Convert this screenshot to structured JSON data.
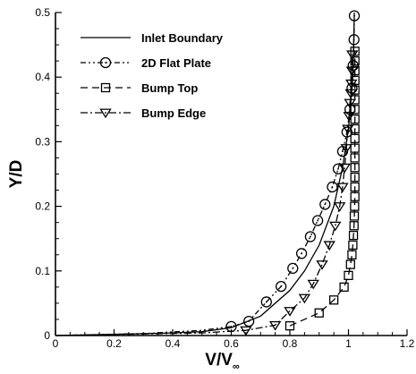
{
  "chart_data": {
    "type": "line",
    "title": "",
    "xlabel": "V/V",
    "xlabel_subscript": "∞",
    "ylabel": "Y/D",
    "xlim": [
      0,
      1.2
    ],
    "ylim": [
      0,
      0.5
    ],
    "xticks": [
      "0",
      "0.2",
      "0.4",
      "0.6",
      "0.8",
      "1",
      "1.2"
    ],
    "yticks": [
      "0",
      "0.1",
      "0.2",
      "0.3",
      "0.4",
      "0.5"
    ],
    "xtick_values": [
      0,
      0.2,
      0.4,
      0.6,
      0.8,
      1.0,
      1.2
    ],
    "ytick_values": [
      0,
      0.1,
      0.2,
      0.3,
      0.4,
      0.5
    ],
    "grid": false,
    "legend_position": "top-left",
    "series": [
      {
        "name": "Inlet Boundary",
        "line_style": "solid",
        "marker": "none",
        "x": [
          0.0,
          0.2,
          0.4,
          0.5,
          0.6,
          0.7,
          0.8,
          0.85,
          0.9,
          0.95,
          0.98,
          1.0,
          1.015,
          1.02
        ],
        "y": [
          0.0,
          0.002,
          0.004,
          0.006,
          0.012,
          0.03,
          0.07,
          0.1,
          0.14,
          0.2,
          0.26,
          0.32,
          0.4,
          0.5
        ]
      },
      {
        "name": "2D Flat Plate",
        "line_style": "dash-dot-dot",
        "marker": "circle",
        "x": [
          0.0,
          0.3,
          0.5,
          0.6,
          0.66,
          0.72,
          0.77,
          0.81,
          0.84,
          0.87,
          0.895,
          0.92,
          0.945,
          0.965,
          0.98,
          0.995,
          1.005,
          1.012,
          1.016,
          1.019,
          1.02
        ],
        "y": [
          0.0,
          0.003,
          0.008,
          0.014,
          0.022,
          0.052,
          0.076,
          0.104,
          0.127,
          0.153,
          0.178,
          0.203,
          0.23,
          0.258,
          0.285,
          0.315,
          0.35,
          0.383,
          0.418,
          0.458,
          0.495
        ]
      },
      {
        "name": "Bump Top",
        "line_style": "dashed",
        "marker": "square",
        "x": [
          0.8,
          0.9,
          0.95,
          0.985,
          1.0,
          1.007,
          1.012,
          1.015,
          1.017,
          1.019,
          1.02,
          1.021,
          1.022,
          1.022,
          1.022,
          1.022,
          1.022,
          1.022,
          1.022,
          1.022,
          1.022,
          1.022,
          1.022,
          1.022,
          1.022,
          1.022,
          1.022,
          1.022
        ],
        "y": [
          0.015,
          0.035,
          0.055,
          0.075,
          0.093,
          0.11,
          0.125,
          0.14,
          0.155,
          0.17,
          0.185,
          0.2,
          0.215,
          0.23,
          0.245,
          0.26,
          0.275,
          0.29,
          0.305,
          0.32,
          0.335,
          0.35,
          0.365,
          0.38,
          0.395,
          0.41,
          0.425,
          0.44
        ]
      },
      {
        "name": "Bump Edge",
        "line_style": "dash-dot",
        "marker": "triangle-down",
        "x": [
          0.0,
          0.5,
          0.65,
          0.75,
          0.8,
          0.85,
          0.88,
          0.91,
          0.935,
          0.955,
          0.97,
          0.98,
          0.987,
          0.993,
          0.998,
          1.002,
          1.005,
          1.008,
          1.01,
          1.012,
          1.013
        ],
        "y": [
          0.0,
          0.004,
          0.008,
          0.016,
          0.038,
          0.058,
          0.08,
          0.11,
          0.14,
          0.17,
          0.2,
          0.23,
          0.26,
          0.29,
          0.32,
          0.34,
          0.36,
          0.375,
          0.39,
          0.41,
          0.435
        ]
      }
    ]
  }
}
